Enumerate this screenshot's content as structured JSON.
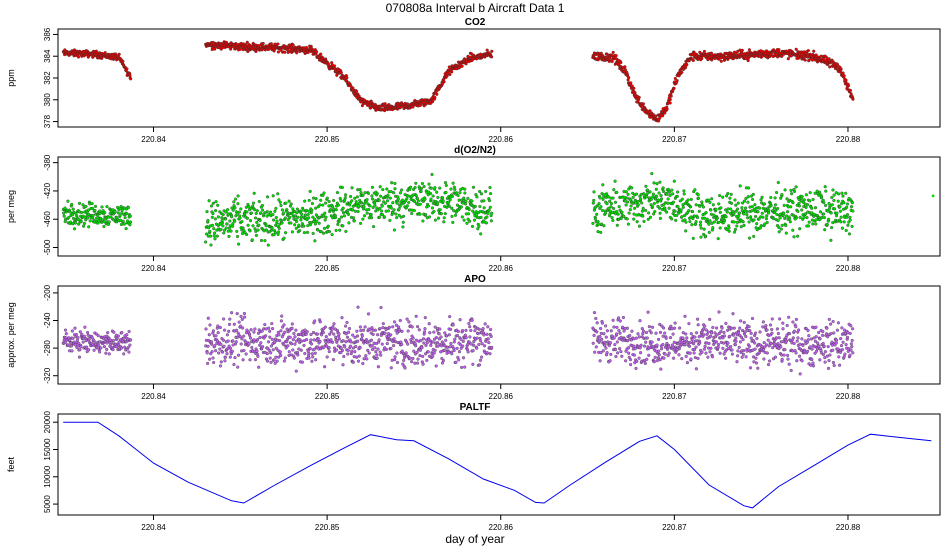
{
  "figure": {
    "title": "070808a   Interval b Aircraft Data 1",
    "xlabel": "day of year"
  },
  "chart_data": [
    {
      "type": "scatter",
      "title": "CO2",
      "ylabel": "ppm",
      "color": "#ee0000",
      "ylim": [
        377.5,
        386.5
      ],
      "yticks": [
        378,
        380,
        382,
        384,
        386
      ],
      "xlim": [
        220.8345,
        220.8853
      ],
      "xticks": [
        "220.84",
        "220.85",
        "220.86",
        "220.87",
        "220.88"
      ],
      "segments": [
        {
          "x0": 220.8348,
          "x1": 220.8387,
          "knots": [
            [
              220.8348,
              384.3
            ],
            [
              220.8365,
              384.2
            ],
            [
              220.838,
              383.9
            ],
            [
              220.8387,
              382.0
            ]
          ],
          "noise": 0.25
        },
        {
          "x0": 220.843,
          "x1": 220.8595,
          "knots": [
            [
              220.843,
              385.1
            ],
            [
              220.845,
              384.9
            ],
            [
              220.847,
              384.8
            ],
            [
              220.849,
              384.6
            ],
            [
              220.85,
              383.4
            ],
            [
              220.851,
              382.0
            ],
            [
              220.852,
              379.8
            ],
            [
              220.853,
              379.2
            ],
            [
              220.8545,
              379.4
            ],
            [
              220.856,
              379.9
            ],
            [
              220.857,
              382.6
            ],
            [
              220.8582,
              383.8
            ],
            [
              220.8595,
              384.2
            ]
          ],
          "noise": 0.3
        },
        {
          "x0": 220.8653,
          "x1": 220.8803,
          "knots": [
            [
              220.8653,
              384.0
            ],
            [
              220.8665,
              383.9
            ],
            [
              220.8672,
              382.5
            ],
            [
              220.8678,
              380.2
            ],
            [
              220.8684,
              379.0
            ],
            [
              220.869,
              378.2
            ],
            [
              220.8696,
              379.4
            ],
            [
              220.8702,
              382.2
            ],
            [
              220.871,
              384.0
            ],
            [
              220.873,
              384.0
            ],
            [
              220.876,
              384.3
            ],
            [
              220.878,
              384.0
            ],
            [
              220.8795,
              383.0
            ],
            [
              220.8803,
              380.0
            ]
          ],
          "noise": 0.35
        }
      ]
    },
    {
      "type": "scatter",
      "title": "d(O2/N2)",
      "ylabel": "per meg",
      "color": "#00dd00",
      "ylim": [
        -512,
        -372
      ],
      "yticks": [
        -380,
        -420,
        -460,
        -500
      ],
      "xlim": [
        220.8345,
        220.8853
      ],
      "xticks": [
        "220.84",
        "220.85",
        "220.86",
        "220.87",
        "220.88"
      ],
      "segments": [
        {
          "x0": 220.8348,
          "x1": 220.8387,
          "knots": [
            [
              220.8348,
              -452
            ],
            [
              220.8387,
              -455
            ]
          ],
          "noise": 14
        },
        {
          "x0": 220.843,
          "x1": 220.8595,
          "knots": [
            [
              220.843,
              -465
            ],
            [
              220.848,
              -460
            ],
            [
              220.85,
              -452
            ],
            [
              220.852,
              -440
            ],
            [
              220.856,
              -433
            ],
            [
              220.8595,
              -447
            ]
          ],
          "noise": 26
        },
        {
          "x0": 220.8653,
          "x1": 220.8803,
          "knots": [
            [
              220.8653,
              -450
            ],
            [
              220.869,
              -433
            ],
            [
              220.872,
              -455
            ],
            [
              220.876,
              -447
            ],
            [
              220.8803,
              -448
            ]
          ],
          "noise": 26
        }
      ],
      "extra_points": [
        [
          220.8849,
          -427
        ]
      ]
    },
    {
      "type": "scatter",
      "title": "APO",
      "ylabel": "approx. per meg",
      "color": "#c060ee",
      "ylim": [
        -332,
        -190
      ],
      "yticks": [
        -200,
        -240,
        -280,
        -320
      ],
      "xlim": [
        220.8345,
        220.8853
      ],
      "xticks": [
        "220.84",
        "220.85",
        "220.86",
        "220.87",
        "220.88"
      ],
      "segments": [
        {
          "x0": 220.8348,
          "x1": 220.8387,
          "knots": [
            [
              220.8348,
              -270
            ],
            [
              220.8387,
              -273
            ]
          ],
          "noise": 14
        },
        {
          "x0": 220.843,
          "x1": 220.8595,
          "knots": [
            [
              220.843,
              -272
            ],
            [
              220.85,
              -270
            ],
            [
              220.856,
              -272
            ],
            [
              220.8595,
              -265
            ]
          ],
          "noise": 30
        },
        {
          "x0": 220.8653,
          "x1": 220.8803,
          "knots": [
            [
              220.8653,
              -268
            ],
            [
              220.869,
              -272
            ],
            [
              220.872,
              -270
            ],
            [
              220.876,
              -275
            ],
            [
              220.8803,
              -272
            ]
          ],
          "noise": 28
        }
      ]
    },
    {
      "type": "line",
      "title": "PALTF",
      "ylabel": "feet",
      "color": "#0000ee",
      "ylim": [
        3000,
        21500
      ],
      "yticks": [
        5000,
        10000,
        15000,
        20000
      ],
      "xlim": [
        220.8345,
        220.8853
      ],
      "xticks": [
        "220.84",
        "220.85",
        "220.86",
        "220.87",
        "220.88"
      ],
      "x": [
        220.8348,
        220.8368,
        220.838,
        220.84,
        220.842,
        220.8445,
        220.8452,
        220.847,
        220.849,
        220.851,
        220.8525,
        220.854,
        220.855,
        220.857,
        220.859,
        220.8608,
        220.862,
        220.8625,
        220.864,
        220.866,
        220.868,
        220.869,
        220.87,
        220.872,
        220.874,
        220.8745,
        220.876,
        220.878,
        220.88,
        220.8813,
        220.883,
        220.8848
      ],
      "y": [
        20000,
        20000,
        17500,
        12500,
        9000,
        5600,
        5200,
        8500,
        12000,
        15300,
        17700,
        16800,
        16600,
        13300,
        9600,
        7500,
        5300,
        5200,
        8500,
        12600,
        16500,
        17500,
        15000,
        8500,
        4700,
        4300,
        8200,
        12000,
        15800,
        17800,
        17200,
        16600
      ]
    }
  ]
}
